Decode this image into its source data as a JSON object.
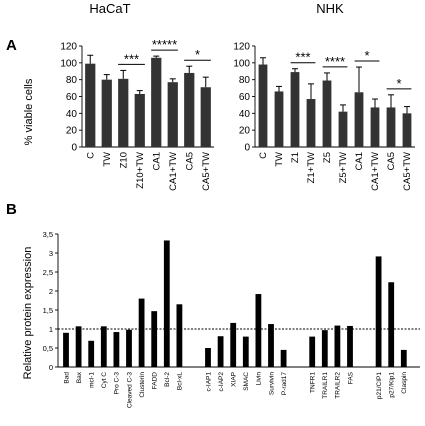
{
  "panels": {
    "a": "A",
    "b": "B"
  },
  "chart_data": [
    {
      "type": "bar",
      "title": "HaCaT",
      "ylabel": "% viable cells",
      "ylim": [
        0,
        120
      ],
      "yticks": [
        0,
        20,
        40,
        60,
        80,
        100,
        120
      ],
      "categories": [
        "C",
        "TW",
        "Z10",
        "Z10+TW",
        "CA1",
        "CA1+TW",
        "CA5",
        "CA5+TW"
      ],
      "values": [
        99,
        80,
        81,
        63,
        106,
        77,
        88,
        71
      ],
      "errors": [
        10,
        6,
        10,
        4,
        2,
        4,
        8,
        12
      ],
      "significance": [
        {
          "from": "Z10",
          "to": "Z10+TW",
          "label": "***"
        },
        {
          "from": "CA1",
          "to": "CA1+TW",
          "label": "*****"
        },
        {
          "from": "CA5",
          "to": "CA5+TW",
          "label": "*"
        }
      ]
    },
    {
      "type": "bar",
      "title": "NHK",
      "ylim": [
        0,
        120
      ],
      "yticks": [
        0,
        20,
        40,
        60,
        80,
        100,
        120
      ],
      "categories": [
        "C",
        "TW",
        "Z1",
        "Z1+TW",
        "Z5",
        "Z5+TW",
        "CA1",
        "CA1+TW",
        "CA5",
        "CA5+TW"
      ],
      "values": [
        98,
        66,
        89,
        57,
        79,
        42,
        65,
        47,
        47,
        40
      ],
      "errors": [
        8,
        6,
        4,
        18,
        9,
        8,
        30,
        10,
        15,
        8
      ],
      "significance": [
        {
          "from": "Z1",
          "to": "Z1+TW",
          "label": "***"
        },
        {
          "from": "Z5",
          "to": "Z5+TW",
          "label": "****"
        },
        {
          "from": "CA1",
          "to": "CA1+TW",
          "label": "*"
        },
        {
          "from": "CA5",
          "to": "CA5+TW",
          "label": "*"
        }
      ]
    },
    {
      "type": "bar",
      "ylabel": "Relative protein expression",
      "ylim": [
        0,
        3.5
      ],
      "yticks": [
        "0",
        "0,5",
        "1",
        "1,5",
        "2",
        "2,5",
        "3",
        "3,5"
      ],
      "reference_line": 1,
      "categories": [
        "Bad",
        "Bax",
        "mcl-1",
        "Cyt C",
        "Pro C-3",
        "Cleaved C-3",
        "Clusterin",
        "FADD",
        "Bcl-2",
        "Bcl-xL",
        "c-IAP1",
        "c-IAP2",
        "XIAP",
        "SMAC",
        "Livin",
        "Survivin",
        "P-rad17",
        "TNFR1",
        "TRAILR1",
        "TRAILR2",
        "FAS",
        "p21/CIP1",
        "p27/Kip1",
        "Claspin"
      ],
      "groups": [
        10,
        7,
        4,
        3
      ],
      "values": [
        0.9,
        1.07,
        0.69,
        1.07,
        0.92,
        0.98,
        1.8,
        1.47,
        3.33,
        1.65,
        0.5,
        0.81,
        1.16,
        0.8,
        1.92,
        1.13,
        0.45,
        0.8,
        0.97,
        1.09,
        1.08,
        2.91,
        2.23,
        0.45
      ]
    }
  ]
}
